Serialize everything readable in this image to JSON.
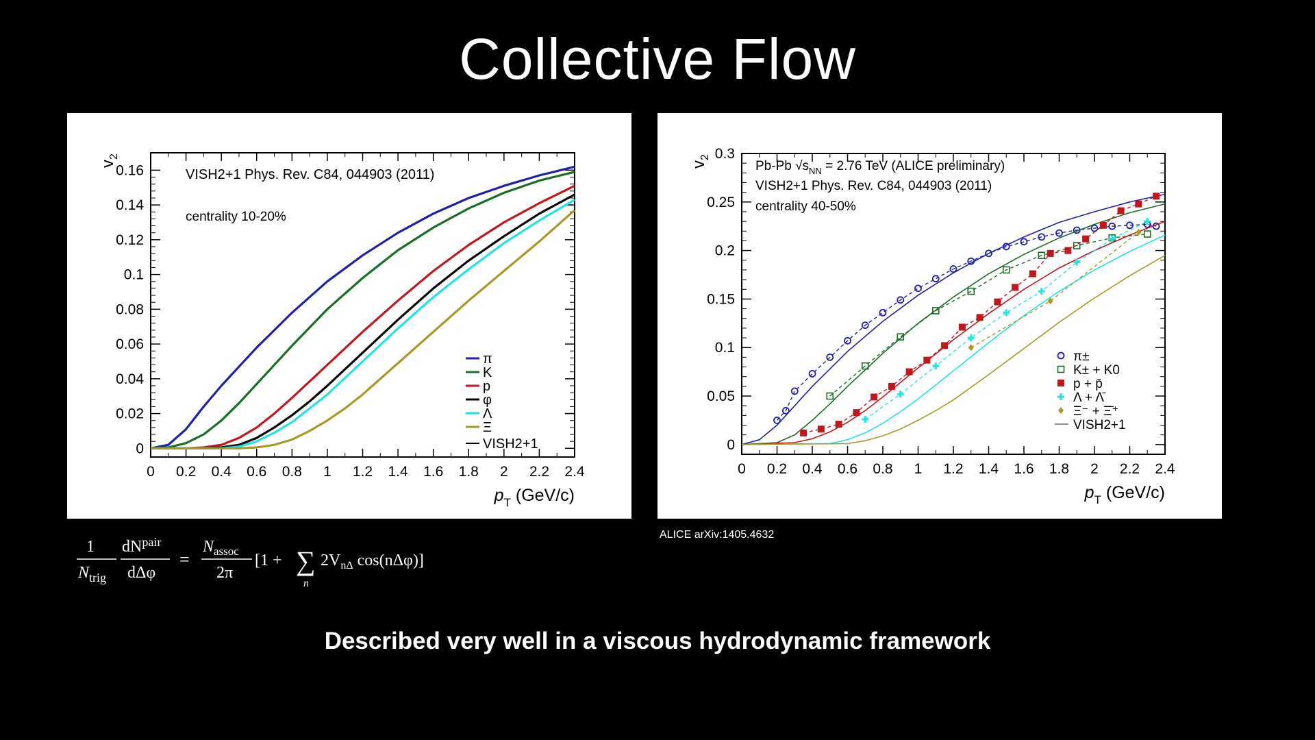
{
  "slide": {
    "title": "Collective Flow",
    "caption": "Described very well in a viscous hydrodynamic framework",
    "source_note": "ALICE  arXiv:1405.4632"
  },
  "formula": {
    "lhs_num_1": "1",
    "lhs_den_1": "N",
    "lhs_den_1_sub": "trig",
    "lhs_num_2": "dN",
    "lhs_num_2_sup": "pair",
    "lhs_den_2": "dΔφ",
    "equals": "=",
    "rhs_num": "N",
    "rhs_num_sub": "assoc",
    "rhs_den": "2π",
    "bracket_open": "[1 +",
    "sum": "∑",
    "sum_index": "n",
    "term": "2V",
    "term_sub": "nΔ",
    "term_tail": " cos(nΔφ)]"
  },
  "chart_data": [
    {
      "type": "line",
      "annotations": [
        "VISH2+1 Phys. Rev. C84, 044903 (2011)",
        "centrality 10-20%"
      ],
      "ylabel": "v",
      "ylabel_sub": "2",
      "xlabel": "p",
      "xlabel_sub": "T",
      "xlabel_unit": " (GeV/c)",
      "xlim": [
        0,
        2.4
      ],
      "ylim": [
        -0.005,
        0.17
      ],
      "x_ticks": [
        0,
        0.2,
        0.4,
        0.6,
        0.8,
        1,
        1.2,
        1.4,
        1.6,
        1.8,
        2,
        2.2,
        2.4
      ],
      "x_tick_labels": [
        "0",
        "0.2",
        "0.4",
        "0.6",
        "0.8",
        "1",
        "1.2",
        "1.4",
        "1.6",
        "1.8",
        "2",
        "2.2",
        "2.4"
      ],
      "y_ticks": [
        0,
        0.02,
        0.04,
        0.06,
        0.08,
        0.1,
        0.12,
        0.14,
        0.16
      ],
      "y_tick_labels": [
        "0",
        "0.02",
        "0.04",
        "0.06",
        "0.08",
        "0.1",
        "0.12",
        "0.14",
        "0.16"
      ],
      "legend_position": "bottom-right",
      "legend_footer": "VISH2+1",
      "grid": false,
      "series": [
        {
          "name": "π",
          "color": "#1f1fa8",
          "x": [
            0,
            0.1,
            0.2,
            0.3,
            0.4,
            0.5,
            0.6,
            0.8,
            1.0,
            1.2,
            1.4,
            1.6,
            1.8,
            2.0,
            2.2,
            2.4
          ],
          "y": [
            0,
            0.002,
            0.011,
            0.024,
            0.036,
            0.047,
            0.058,
            0.078,
            0.096,
            0.111,
            0.124,
            0.135,
            0.144,
            0.151,
            0.157,
            0.162
          ]
        },
        {
          "name": "K",
          "color": "#1c6b27",
          "x": [
            0,
            0.1,
            0.2,
            0.3,
            0.4,
            0.5,
            0.6,
            0.8,
            1.0,
            1.2,
            1.4,
            1.6,
            1.8,
            2.0,
            2.2,
            2.4
          ],
          "y": [
            0,
            0.0005,
            0.003,
            0.008,
            0.016,
            0.026,
            0.037,
            0.059,
            0.08,
            0.098,
            0.114,
            0.127,
            0.138,
            0.147,
            0.154,
            0.159
          ]
        },
        {
          "name": "p",
          "color": "#c0171d",
          "x": [
            0,
            0.2,
            0.3,
            0.4,
            0.5,
            0.6,
            0.7,
            0.8,
            1.0,
            1.2,
            1.4,
            1.6,
            1.8,
            2.0,
            2.2,
            2.4
          ],
          "y": [
            0,
            0,
            0.0005,
            0.002,
            0.006,
            0.012,
            0.02,
            0.029,
            0.048,
            0.067,
            0.085,
            0.102,
            0.117,
            0.13,
            0.141,
            0.151
          ]
        },
        {
          "name": "φ",
          "color": "#000000",
          "x": [
            0,
            0.3,
            0.4,
            0.5,
            0.6,
            0.7,
            0.8,
            0.9,
            1.0,
            1.2,
            1.4,
            1.6,
            1.8,
            2.0,
            2.2,
            2.4
          ],
          "y": [
            0,
            0,
            0.0005,
            0.002,
            0.006,
            0.012,
            0.019,
            0.027,
            0.036,
            0.055,
            0.074,
            0.092,
            0.108,
            0.122,
            0.135,
            0.146
          ]
        },
        {
          "name": "Λ",
          "color": "#21e3e3",
          "x": [
            0,
            0.4,
            0.5,
            0.6,
            0.7,
            0.8,
            0.9,
            1.0,
            1.2,
            1.4,
            1.6,
            1.8,
            2.0,
            2.2,
            2.4
          ],
          "y": [
            0,
            0,
            0.001,
            0.004,
            0.009,
            0.015,
            0.023,
            0.031,
            0.05,
            0.069,
            0.087,
            0.103,
            0.118,
            0.131,
            0.143
          ]
        },
        {
          "name": "Ξ",
          "color": "#a59a25",
          "x": [
            0,
            0.5,
            0.6,
            0.7,
            0.8,
            0.9,
            1.0,
            1.1,
            1.2,
            1.4,
            1.6,
            1.8,
            2.0,
            2.2,
            2.4
          ],
          "y": [
            0,
            0,
            0.0005,
            0.002,
            0.005,
            0.01,
            0.016,
            0.023,
            0.031,
            0.049,
            0.067,
            0.085,
            0.102,
            0.119,
            0.137
          ]
        }
      ]
    },
    {
      "type": "scatter",
      "annotations": [
        "Pb-Pb √s",
        "NN",
        " = 2.76 TeV (ALICE preliminary)",
        "VISH2+1 Phys. Rev. C84, 044903 (2011)",
        "centrality 40-50%"
      ],
      "ylabel": "v",
      "ylabel_sub": "2",
      "xlabel": "p",
      "xlabel_sub": "T",
      "xlabel_unit": " (GeV/c)",
      "xlim": [
        0,
        2.4
      ],
      "ylim": [
        -0.01,
        0.3
      ],
      "x_ticks": [
        0,
        0.2,
        0.4,
        0.6,
        0.8,
        1,
        1.2,
        1.4,
        1.6,
        1.8,
        2,
        2.2,
        2.4
      ],
      "x_tick_labels": [
        "0",
        "0.2",
        "0.4",
        "0.6",
        "0.8",
        "1",
        "1.2",
        "1.4",
        "1.6",
        "1.8",
        "2",
        "2.2",
        "2.4"
      ],
      "y_ticks": [
        0,
        0.05,
        0.1,
        0.15,
        0.2,
        0.25,
        0.3
      ],
      "y_tick_labels": [
        "0",
        "0.05",
        "0.1",
        "0.15",
        "0.2",
        "0.25",
        "0.3"
      ],
      "legend_position": "bottom-right",
      "legend_labels": [
        "π±",
        "K± + K0",
        "p + p̄",
        "Λ + Λ̄",
        "Ξ⁻ + Ξ̄⁺",
        "VISH2+1"
      ],
      "grid": false,
      "series": [
        {
          "name": "π±",
          "marker": "circle",
          "color": "#1f1fa8",
          "x": [
            0.2,
            0.25,
            0.3,
            0.4,
            0.5,
            0.6,
            0.7,
            0.8,
            0.9,
            1.0,
            1.1,
            1.2,
            1.3,
            1.4,
            1.5,
            1.6,
            1.7,
            1.8,
            1.9,
            2.0,
            2.1,
            2.2,
            2.3,
            2.35
          ],
          "y": [
            0.025,
            0.035,
            0.055,
            0.073,
            0.09,
            0.107,
            0.123,
            0.136,
            0.149,
            0.161,
            0.171,
            0.181,
            0.189,
            0.197,
            0.204,
            0.209,
            0.214,
            0.218,
            0.221,
            0.223,
            0.225,
            0.226,
            0.227,
            0.225
          ],
          "model": {
            "x": [
              0,
              0.1,
              0.2,
              0.3,
              0.4,
              0.6,
              0.8,
              1.0,
              1.2,
              1.4,
              1.6,
              1.8,
              2.0,
              2.2,
              2.4
            ],
            "y": [
              0,
              0.005,
              0.02,
              0.04,
              0.06,
              0.096,
              0.127,
              0.154,
              0.177,
              0.197,
              0.214,
              0.229,
              0.24,
              0.25,
              0.258
            ]
          }
        },
        {
          "name": "K± + K0",
          "marker": "open-square",
          "color": "#1c6b27",
          "x": [
            0.5,
            0.7,
            0.9,
            1.1,
            1.3,
            1.5,
            1.7,
            1.9,
            2.1,
            2.3
          ],
          "y": [
            0.05,
            0.081,
            0.111,
            0.138,
            0.158,
            0.18,
            0.195,
            0.205,
            0.213,
            0.217
          ],
          "model": {
            "x": [
              0,
              0.2,
              0.3,
              0.4,
              0.5,
              0.6,
              0.8,
              1.0,
              1.2,
              1.4,
              1.6,
              1.8,
              2.0,
              2.2,
              2.4
            ],
            "y": [
              0,
              0.002,
              0.01,
              0.025,
              0.042,
              0.06,
              0.094,
              0.125,
              0.152,
              0.176,
              0.196,
              0.213,
              0.227,
              0.239,
              0.248
            ]
          }
        },
        {
          "name": "p + p̄",
          "marker": "filled-square",
          "color": "#c0171d",
          "x": [
            0.35,
            0.45,
            0.55,
            0.65,
            0.75,
            0.85,
            0.95,
            1.05,
            1.15,
            1.25,
            1.35,
            1.45,
            1.55,
            1.65,
            1.75,
            1.85,
            1.95,
            2.05,
            2.15,
            2.25,
            2.35
          ],
          "y": [
            0.012,
            0.016,
            0.021,
            0.033,
            0.049,
            0.06,
            0.075,
            0.087,
            0.102,
            0.121,
            0.131,
            0.147,
            0.162,
            0.176,
            0.197,
            0.2,
            0.212,
            0.226,
            0.241,
            0.248,
            0.256
          ],
          "model": {
            "x": [
              0,
              0.3,
              0.4,
              0.5,
              0.6,
              0.7,
              0.8,
              1.0,
              1.2,
              1.4,
              1.6,
              1.8,
              2.0,
              2.2,
              2.4
            ],
            "y": [
              0,
              0.002,
              0.006,
              0.013,
              0.023,
              0.035,
              0.049,
              0.079,
              0.108,
              0.135,
              0.16,
              0.182,
              0.2,
              0.216,
              0.23
            ]
          }
        },
        {
          "name": "Λ + Λ̄",
          "marker": "star",
          "color": "#21e3e3",
          "x": [
            0.7,
            0.9,
            1.1,
            1.3,
            1.5,
            1.7,
            1.9,
            2.1,
            2.3
          ],
          "y": [
            0.026,
            0.052,
            0.081,
            0.11,
            0.136,
            0.158,
            0.188,
            0.212,
            0.23
          ],
          "model": {
            "x": [
              0,
              0.5,
              0.6,
              0.7,
              0.8,
              0.9,
              1.0,
              1.2,
              1.4,
              1.6,
              1.8,
              2.0,
              2.2,
              2.4
            ],
            "y": [
              0,
              0.001,
              0.005,
              0.012,
              0.022,
              0.034,
              0.047,
              0.076,
              0.105,
              0.133,
              0.158,
              0.18,
              0.199,
              0.216
            ]
          }
        },
        {
          "name": "Ξ⁻ + Ξ̄⁺",
          "marker": "diamond",
          "color": "#a59a25",
          "x": [
            1.3,
            1.75,
            2.25
          ],
          "y": [
            0.1,
            0.148,
            0.219
          ],
          "model": {
            "x": [
              0,
              0.6,
              0.7,
              0.8,
              0.9,
              1.0,
              1.1,
              1.2,
              1.4,
              1.6,
              1.8,
              2.0,
              2.2,
              2.4
            ],
            "y": [
              0,
              0.001,
              0.004,
              0.009,
              0.016,
              0.025,
              0.035,
              0.046,
              0.072,
              0.099,
              0.126,
              0.151,
              0.174,
              0.195
            ]
          }
        }
      ]
    }
  ]
}
